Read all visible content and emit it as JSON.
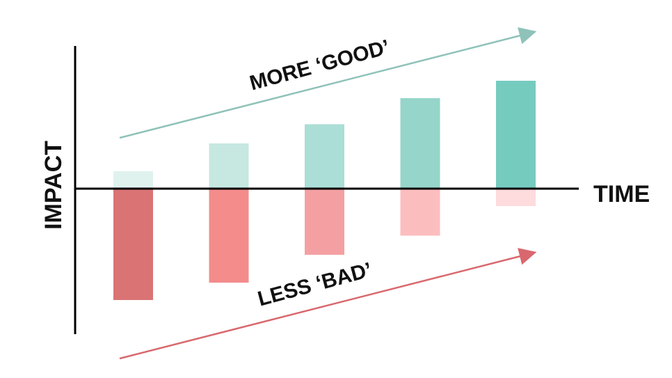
{
  "chart_data": {
    "type": "bar",
    "title": "",
    "xlabel": "TIME",
    "ylabel": "IMPACT",
    "categories": [
      "",
      "",
      "",
      "",
      ""
    ],
    "series": [
      {
        "values": [
          1.0,
          2.6,
          3.7,
          5.2,
          6.2
        ],
        "colors": [
          "#e0f2ee",
          "#c6e8e1",
          "#aaded6",
          "#96d5ca",
          "#76cbbf"
        ]
      },
      {
        "values": [
          -6.4,
          -5.4,
          -3.8,
          -2.7,
          -1.0
        ],
        "colors": [
          "#d97374",
          "#f48c8c",
          "#f4a0a2",
          "#fcbdbf",
          "#fedbdd"
        ]
      }
    ],
    "ylim": [
      -8.5,
      8.5
    ],
    "grid": false,
    "legend": "none",
    "annotations": [
      {
        "text": "MORE ‘GOOD’",
        "color": "#8fc2b9"
      },
      {
        "text": "LESS ‘BAD’",
        "color": "#d9686e"
      }
    ]
  }
}
